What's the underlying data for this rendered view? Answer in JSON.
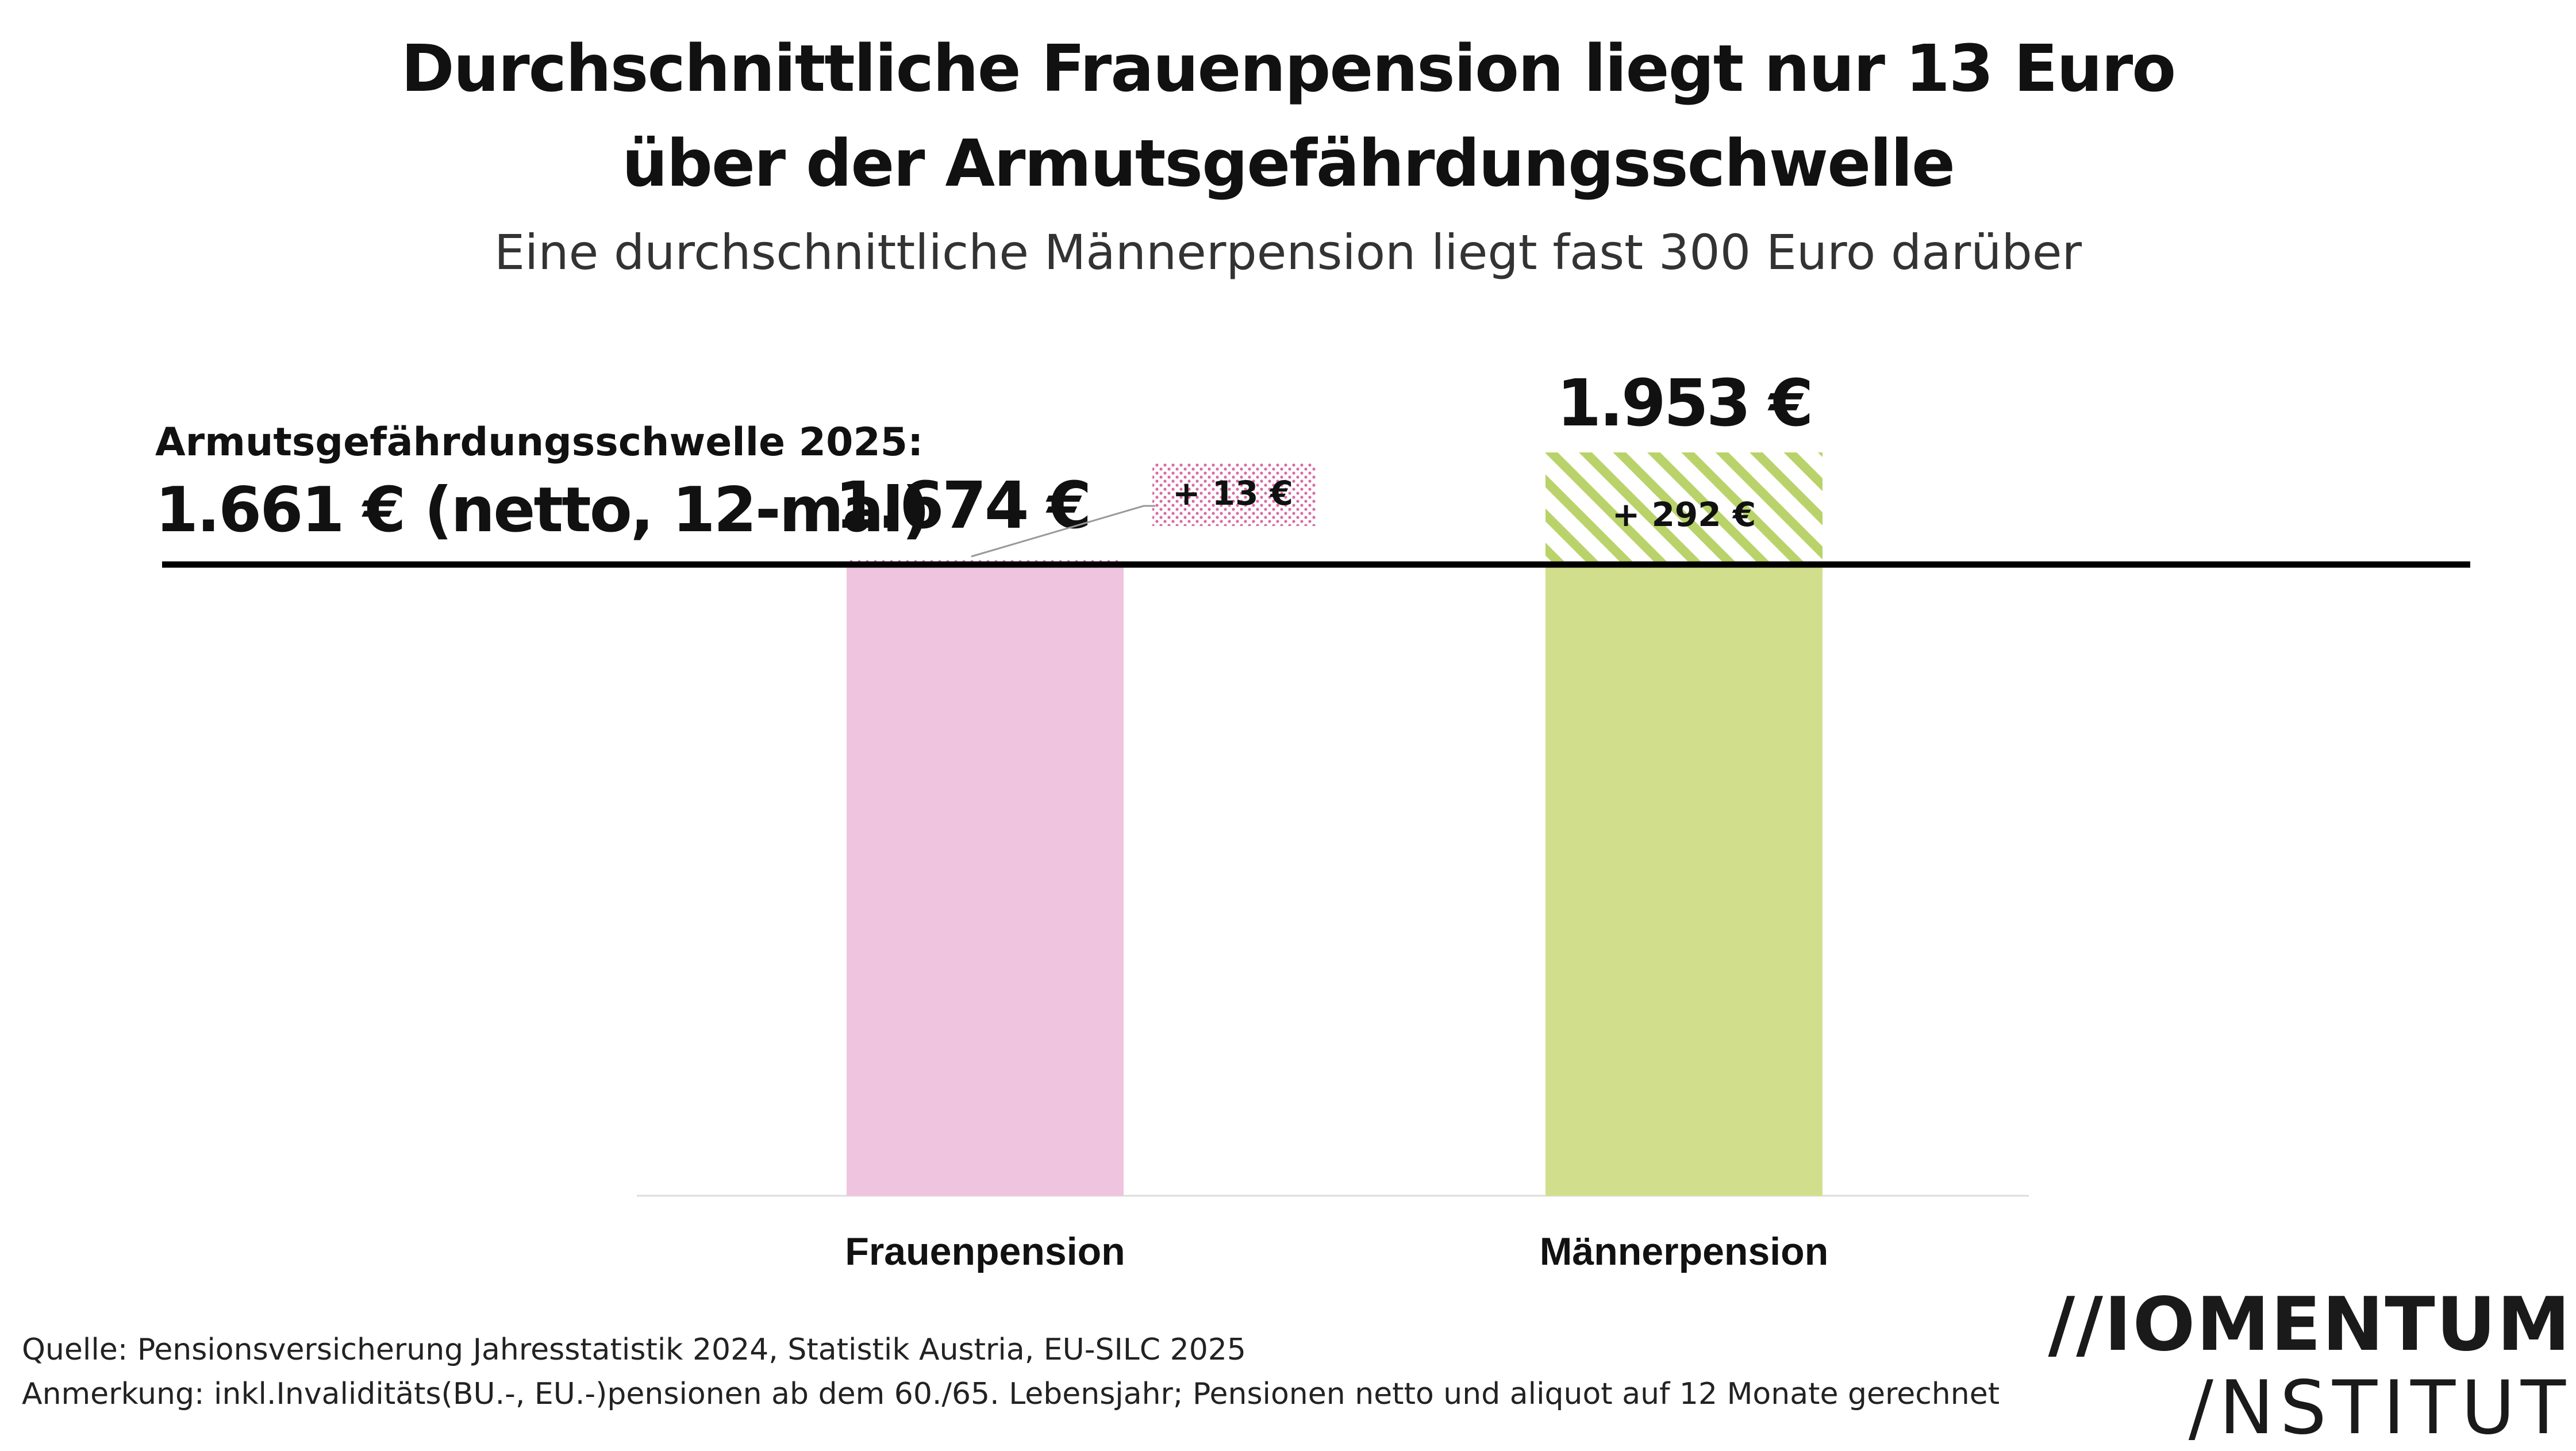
{
  "title_line1": "Durchschnittliche Frauenpension liegt nur 13 Euro",
  "title_line2": "über der Armutsgefährdungsschwelle",
  "subtitle": "Eine durchschnittliche Männerpension liegt fast 300 Euro darüber",
  "threshold": {
    "label": "Armutsgefährdungsschwelle 2025:",
    "value_text": "1.661 € (netto, 12-mal)",
    "value": 1661
  },
  "chart_data": {
    "type": "bar",
    "categories": [
      "Frauenpension",
      "Männerpension"
    ],
    "values": [
      1674,
      1953
    ],
    "value_labels": [
      "1.674 €",
      "1.953 €"
    ],
    "difference_labels": [
      "+ 13 €",
      "+ 292 €"
    ],
    "differences": [
      13,
      292
    ],
    "threshold": 1661,
    "colors": [
      "#efc4de",
      "#d1df8d"
    ],
    "hatch_colors": [
      "#d86aa8",
      "#b9d36a"
    ],
    "threshold_color": "#000000",
    "ylim": [
      0,
      1661
    ],
    "grid": false,
    "legend": "none"
  },
  "footer": {
    "source": "Quelle: Pensionsversicherung Jahresstatistik 2024, Statistik Austria, EU-SILC 2025",
    "note": "Anmerkung: inkl.Invaliditäts(BU.-, EU.-)pensionen ab dem 60./65. Lebensjahr; Pensionen netto und aliquot auf 12 Monate gerechnet"
  },
  "logo": {
    "line1": "//IOMENTUM",
    "line2": "/NSTITUT"
  }
}
